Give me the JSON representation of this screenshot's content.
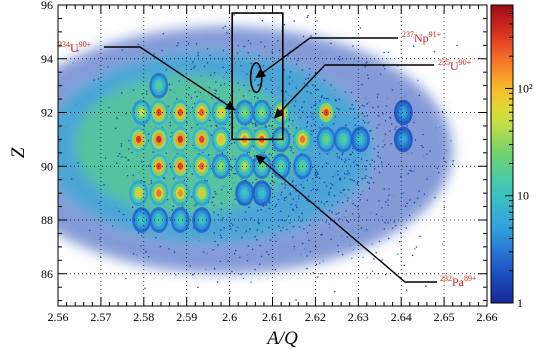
{
  "chart_data": {
    "type": "heatmap",
    "title": "",
    "xlabel": "A/Q",
    "ylabel": "Z",
    "xlim": [
      2.56,
      2.66
    ],
    "ylim": [
      84.8,
      96
    ],
    "x_ticks": [
      2.56,
      2.57,
      2.58,
      2.59,
      2.6,
      2.61,
      2.62,
      2.63,
      2.64,
      2.65,
      2.66
    ],
    "x_tick_labels": [
      "2.56",
      "2.57",
      "2.58",
      "2.59",
      "2.6",
      "2.61",
      "2.62",
      "2.63",
      "2.64",
      "2.65",
      "2.66"
    ],
    "y_ticks": [
      86,
      88,
      90,
      92,
      94,
      96
    ],
    "y_tick_labels": [
      "86",
      "88",
      "90",
      "92",
      "94",
      "96"
    ],
    "grid": true,
    "colorbar": {
      "scale": "log",
      "ticks": [
        1,
        10,
        100
      ],
      "tick_labels": [
        "1",
        "10",
        "10²"
      ],
      "max": 600
    },
    "peaks": [
      {
        "x": 2.5788,
        "y": 91,
        "counts": 350
      },
      {
        "x": 2.5788,
        "y": 89,
        "counts": 90
      },
      {
        "x": 2.5795,
        "y": 92,
        "counts": 60
      },
      {
        "x": 2.5795,
        "y": 88,
        "counts": 12
      },
      {
        "x": 2.5835,
        "y": 92,
        "counts": 320
      },
      {
        "x": 2.5835,
        "y": 91,
        "counts": 420
      },
      {
        "x": 2.5835,
        "y": 90,
        "counts": 300
      },
      {
        "x": 2.5835,
        "y": 89,
        "counts": 200
      },
      {
        "x": 2.5835,
        "y": 93,
        "counts": 20
      },
      {
        "x": 2.5835,
        "y": 88,
        "counts": 15
      },
      {
        "x": 2.5885,
        "y": 92,
        "counts": 300
      },
      {
        "x": 2.5885,
        "y": 91,
        "counts": 400
      },
      {
        "x": 2.5885,
        "y": 90,
        "counts": 320
      },
      {
        "x": 2.5885,
        "y": 89,
        "counts": 160
      },
      {
        "x": 2.5885,
        "y": 88,
        "counts": 15
      },
      {
        "x": 2.5935,
        "y": 92,
        "counts": 260
      },
      {
        "x": 2.5935,
        "y": 91,
        "counts": 320
      },
      {
        "x": 2.5935,
        "y": 90,
        "counts": 250
      },
      {
        "x": 2.5935,
        "y": 89,
        "counts": 90
      },
      {
        "x": 2.5935,
        "y": 88,
        "counts": 12
      },
      {
        "x": 2.598,
        "y": 92,
        "counts": 90
      },
      {
        "x": 2.598,
        "y": 91,
        "counts": 110
      },
      {
        "x": 2.598,
        "y": 90,
        "counts": 35
      },
      {
        "x": 2.6035,
        "y": 92,
        "counts": 30
      },
      {
        "x": 2.6035,
        "y": 91,
        "counts": 180
      },
      {
        "x": 2.6035,
        "y": 90,
        "counts": 45
      },
      {
        "x": 2.6035,
        "y": 89,
        "counts": 12
      },
      {
        "x": 2.6075,
        "y": 92,
        "counts": 30
      },
      {
        "x": 2.6075,
        "y": 91,
        "counts": 260
      },
      {
        "x": 2.6075,
        "y": 90,
        "counts": 25
      },
      {
        "x": 2.6075,
        "y": 89,
        "counts": 10
      },
      {
        "x": 2.612,
        "y": 92,
        "counts": 220
      },
      {
        "x": 2.612,
        "y": 91,
        "counts": 25
      },
      {
        "x": 2.612,
        "y": 90,
        "counts": 20
      },
      {
        "x": 2.617,
        "y": 91,
        "counts": 200
      },
      {
        "x": 2.617,
        "y": 90,
        "counts": 20
      },
      {
        "x": 2.6225,
        "y": 92,
        "counts": 320
      },
      {
        "x": 2.6225,
        "y": 91,
        "counts": 25
      },
      {
        "x": 2.6265,
        "y": 91,
        "counts": 18
      },
      {
        "x": 2.6305,
        "y": 91,
        "counts": 10
      },
      {
        "x": 2.6405,
        "y": 92,
        "counts": 6
      },
      {
        "x": 2.6405,
        "y": 91,
        "counts": 6
      }
    ],
    "annotations": [
      {
        "id": "u234",
        "nuclide": "U",
        "mass": "234",
        "charge": "90+",
        "label_pos": "top-left",
        "points_to": {
          "x": 2.6012,
          "y": 92.1
        }
      },
      {
        "id": "np237",
        "nuclide": "Np",
        "mass": "237",
        "charge": "91+",
        "label_pos": "top-right",
        "points_to": {
          "x": 2.6062,
          "y": 93.3
        }
      },
      {
        "id": "u235",
        "nuclide": "U",
        "mass": "235",
        "charge": "90+",
        "label_pos": "right",
        "points_to": {
          "x": 2.6105,
          "y": 91.8
        }
      },
      {
        "id": "pa232",
        "nuclide": "Pa",
        "mass": "232",
        "charge": "89+",
        "label_pos": "bottom-right",
        "points_to": {
          "x": 2.6062,
          "y": 90.4
        }
      }
    ],
    "rectangle": {
      "x0": 2.6006,
      "x1": 2.6124,
      "y0": 91,
      "y1": 95.7
    },
    "ellipse": {
      "cx": 2.6062,
      "cy": 93.3,
      "rx": 0.0013,
      "ry": 0.55
    }
  }
}
